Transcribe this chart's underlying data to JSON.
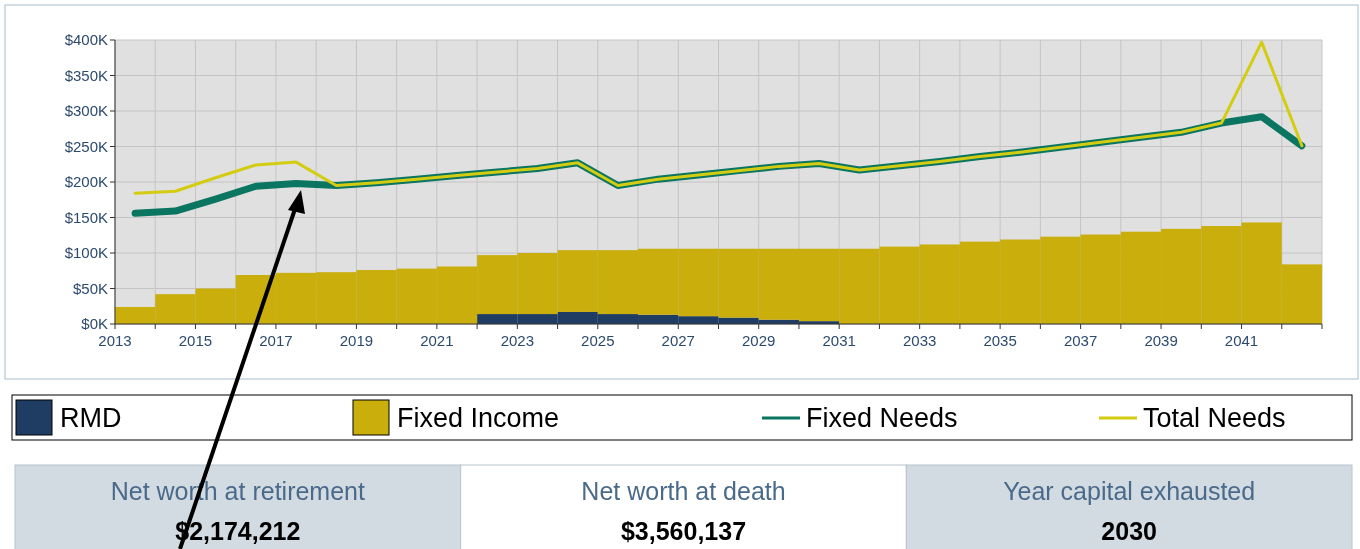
{
  "chart_data": {
    "type": "bar",
    "stacked": true,
    "x": [
      2013.5,
      2014.5,
      2015.5,
      2016.5,
      2017.5,
      2018.5,
      2019.5,
      2020.5,
      2021.5,
      2022.5,
      2023.5,
      2024.5,
      2025.5,
      2026.5,
      2027.5,
      2028.5,
      2029.5,
      2030.5,
      2031.5,
      2032.5,
      2033.5,
      2034.5,
      2035.5,
      2036.5,
      2037.5,
      2038.5,
      2039.5,
      2040.5,
      2041.5,
      2042.5
    ],
    "series": [
      {
        "name": "RMD",
        "color": "#1f3d63",
        "values": [
          0,
          0,
          0,
          0,
          0,
          0,
          0,
          0,
          0,
          14,
          14,
          17,
          14,
          13,
          11,
          9,
          6,
          4,
          0,
          0,
          0,
          0,
          0,
          0,
          0,
          0,
          0,
          0,
          0,
          0
        ]
      },
      {
        "name": "Fixed Income",
        "color": "#c9ae0c",
        "values": [
          24,
          42,
          50,
          69,
          72,
          73,
          76,
          78,
          81,
          83,
          86,
          87,
          90,
          93,
          95,
          97,
          100,
          102,
          106,
          109,
          112,
          116,
          119,
          123,
          126,
          130,
          134,
          138,
          143,
          84
        ]
      },
      {
        "name": "Fixed Needs",
        "type": "line",
        "color": "#0a7560",
        "values": [
          156,
          159,
          176,
          194,
          198,
          195,
          199,
          204,
          209,
          214,
          219,
          227,
          195,
          204,
          210,
          216,
          222,
          226,
          217,
          223,
          229,
          236,
          242,
          249,
          256,
          263,
          270,
          283,
          292,
          251
        ]
      },
      {
        "name": "Total Needs",
        "type": "line",
        "color": "#d4cc10",
        "values": [
          184,
          187,
          206,
          224,
          228,
          195,
          199,
          204,
          209,
          214,
          219,
          227,
          195,
          204,
          210,
          216,
          222,
          226,
          217,
          223,
          229,
          236,
          242,
          249,
          256,
          263,
          270,
          283,
          397,
          251
        ]
      }
    ],
    "xlim": [
      2013,
      2043
    ],
    "xticks": [
      2013,
      {
        "value": 2014,
        "label": null
      },
      2015,
      {
        "value": 2016,
        "label": null
      },
      2017,
      {
        "value": 2018,
        "label": null
      },
      2019,
      {
        "value": 2020,
        "label": null
      },
      2021,
      {
        "value": 2022,
        "label": null
      },
      2023,
      {
        "value": 2024,
        "label": null
      },
      2025,
      {
        "value": 2026,
        "label": null
      },
      2027,
      {
        "value": 2028,
        "label": null
      },
      2029,
      {
        "value": 2030,
        "label": null
      },
      2031,
      {
        "value": 2032,
        "label": null
      },
      2033,
      {
        "value": 2034,
        "label": null
      },
      2035,
      {
        "value": 2036,
        "label": null
      },
      2037,
      {
        "value": 2038,
        "label": null
      },
      2039,
      {
        "value": 2040,
        "label": null
      },
      2041,
      {
        "value": 2042,
        "label": null
      },
      {
        "value": 2043,
        "label": null
      }
    ],
    "ylim": [
      0,
      400
    ],
    "yticks": [
      {
        "value": 0,
        "label": "$0K"
      },
      {
        "value": 50,
        "label": "$50K"
      },
      {
        "value": 100,
        "label": "$100K"
      },
      {
        "value": 150,
        "label": "$150K"
      },
      {
        "value": 200,
        "label": "$200K"
      },
      {
        "value": 250,
        "label": "$250K"
      },
      {
        "value": 300,
        "label": "$300K"
      },
      {
        "value": 350,
        "label": "$350K"
      },
      {
        "value": 400,
        "label": "$400K"
      }
    ],
    "grid": true,
    "legend": "bottom",
    "annotations": [
      "Net worth at retirement",
      "$2,174,212",
      "Net worth at death",
      "$3,560,137",
      "Year capital exhausted",
      "2030"
    ]
  }
}
